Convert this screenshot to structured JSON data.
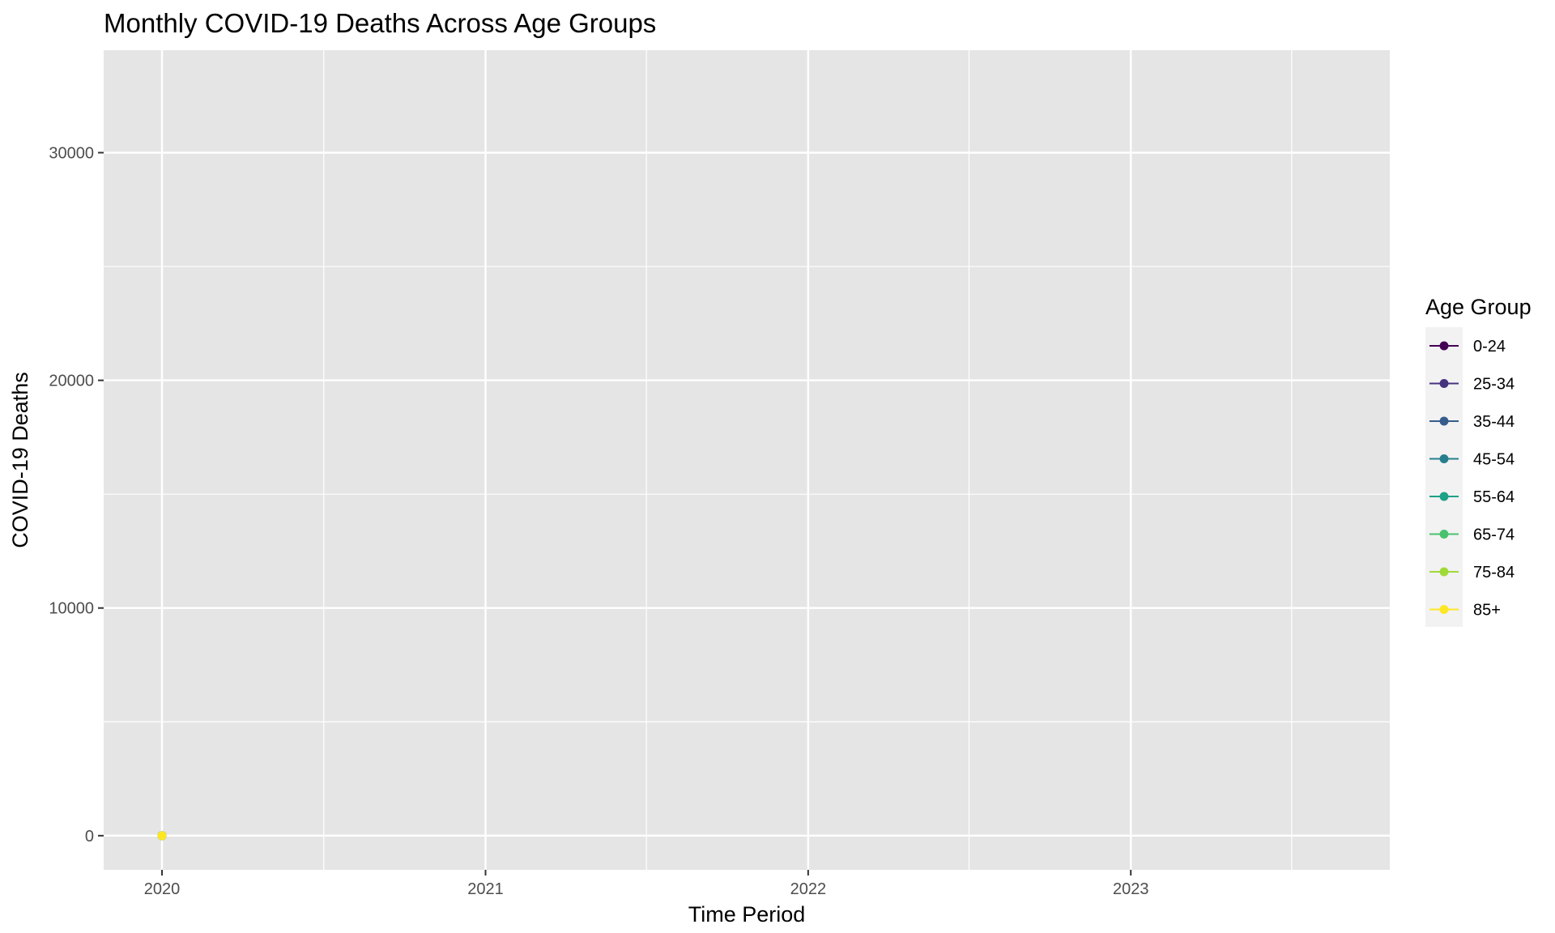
{
  "chart_data": {
    "type": "line",
    "title": "Monthly COVID-19 Deaths Across Age Groups",
    "xlabel": "Time Period",
    "ylabel": "COVID-19 Deaths",
    "x_ticks": [
      "2020",
      "2021",
      "2022",
      "2023"
    ],
    "y_ticks": [
      0,
      10000,
      20000,
      30000
    ],
    "xlim": [
      "2019-10-27",
      "2023-10-21"
    ],
    "ylim": [
      -1500,
      34500
    ],
    "grid": true,
    "legend": {
      "title": "Age Group",
      "placement": "right"
    },
    "series": [
      {
        "name": "0-24",
        "color": "#440154",
        "points": [
          {
            "x": "2020-01-01",
            "y": 0
          }
        ]
      },
      {
        "name": "25-34",
        "color": "#46337E",
        "points": [
          {
            "x": "2020-01-01",
            "y": 0
          }
        ]
      },
      {
        "name": "35-44",
        "color": "#365C8D",
        "points": [
          {
            "x": "2020-01-01",
            "y": 0
          }
        ]
      },
      {
        "name": "45-54",
        "color": "#277F8E",
        "points": [
          {
            "x": "2020-01-01",
            "y": 0
          }
        ]
      },
      {
        "name": "55-64",
        "color": "#1FA187",
        "points": [
          {
            "x": "2020-01-01",
            "y": 0
          }
        ]
      },
      {
        "name": "65-74",
        "color": "#4AC16D",
        "points": [
          {
            "x": "2020-01-01",
            "y": 0
          }
        ]
      },
      {
        "name": "75-84",
        "color": "#A0DA39",
        "points": [
          {
            "x": "2020-01-01",
            "y": 0
          }
        ]
      },
      {
        "name": "85+",
        "color": "#FDE725",
        "points": [
          {
            "x": "2020-01-01",
            "y": 0
          }
        ]
      }
    ]
  }
}
